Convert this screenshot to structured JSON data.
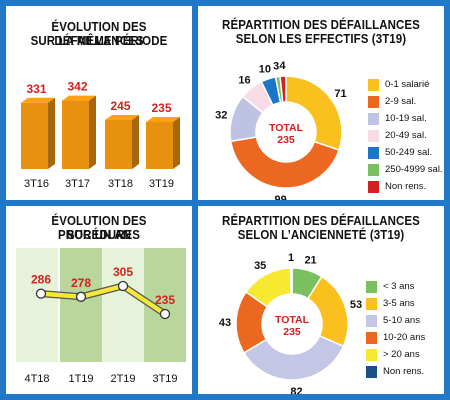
{
  "colors": {
    "page_background": "#1f78c8",
    "value_red": "#d42020",
    "bar_orange": "#e8900f",
    "line_yellow": "#f6e83a",
    "column_green_dark": "#b9d79c",
    "column_green_light": "#e6f2d9"
  },
  "panels": {
    "tl": {
      "title_line1": "ÉVOLUTION DES DÉFAILLANCES",
      "title_line2": "SUR LA MÊME PÉRIODE"
    },
    "tr": {
      "title_line1": "RÉPARTITION DES DÉFAILLANCES",
      "title_line2": "SELON LES EFFECTIFS (3T19)"
    },
    "bl": {
      "title_line1": "ÉVOLUTION DES PROCÉDURES",
      "title_line2": "SUR UN AN"
    },
    "br": {
      "title_line1": "RÉPARTITION DES DÉFAILLANCES",
      "title_line2": "SELON L’ANCIENNETÉ (3T19)"
    }
  },
  "chart_data": [
    {
      "type": "bar",
      "title": "ÉVOLUTION DES DÉFAILLANCES SUR LA MÊME PÉRIODE",
      "categories": [
        "3T16",
        "3T17",
        "3T18",
        "3T19"
      ],
      "values": [
        331,
        342,
        245,
        235
      ],
      "bar_color": "#e8900f",
      "grid": false
    },
    {
      "type": "pie",
      "title": "RÉPARTITION DES DÉFAILLANCES SELON LES EFFECTIFS (3T19)",
      "center_label": "TOTAL",
      "center_value": "235",
      "slices": [
        {
          "label": "0-1 salarié",
          "value": 71,
          "color": "#f9c01e"
        },
        {
          "label": "2-9 sal.",
          "value": 99,
          "color": "#ec6820"
        },
        {
          "label": "10-19 sal.",
          "value": 32,
          "color": "#bfc3e3"
        },
        {
          "label": "20-49 sal.",
          "value": 16,
          "color": "#f7dbe6"
        },
        {
          "label": "50-249 sal.",
          "value": 10,
          "color": "#1b76c9"
        },
        {
          "label": "250-4999 sal.",
          "value": 3,
          "color": "#7ac060"
        },
        {
          "label": "Non rens.",
          "value": 4,
          "color": "#d42020"
        }
      ],
      "legend": "right"
    },
    {
      "type": "line",
      "title": "ÉVOLUTION DES PROCÉDURES SUR UN AN",
      "categories": [
        "4T18",
        "1T19",
        "2T19",
        "3T19"
      ],
      "values": [
        286,
        278,
        305,
        235
      ],
      "line_color": "#f6e83a",
      "grid": false
    },
    {
      "type": "pie",
      "title": "RÉPARTITION DES DÉFAILLANCES SELON L’ANCIENNETÉ (3T19)",
      "center_label": "TOTAL",
      "center_value": "235",
      "slices": [
        {
          "label": "< 3 ans",
          "value": 21,
          "color": "#7ac060"
        },
        {
          "label": "3-5 ans",
          "value": 53,
          "color": "#f9c01e"
        },
        {
          "label": "5-10 ans",
          "value": 82,
          "color": "#c4c6e6"
        },
        {
          "label": "10-20 ans",
          "value": 43,
          "color": "#ec6820"
        },
        {
          "label": "> 20 ans",
          "value": 35,
          "color": "#f7e92f"
        },
        {
          "label": "Non rens.",
          "value": 1,
          "color": "#1b4f8a"
        }
      ],
      "legend": "right"
    }
  ]
}
